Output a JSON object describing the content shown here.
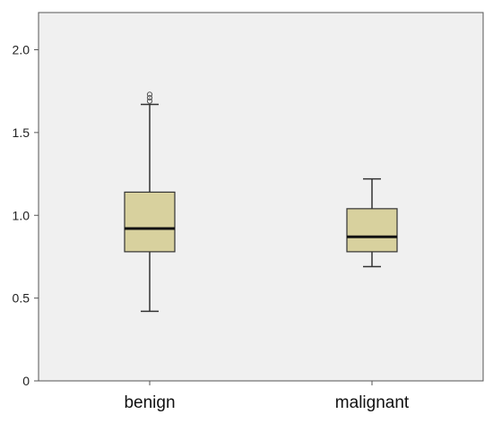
{
  "chart_data": {
    "type": "boxplot",
    "title": "",
    "xlabel": "",
    "ylabel": "",
    "categories": [
      "benign",
      "malignant"
    ],
    "ylim": [
      0,
      2.0
    ],
    "yticks": [
      "0",
      "0.5",
      "1.0",
      "1.5",
      "2.0"
    ],
    "ytick_values": [
      0,
      0.5,
      1.0,
      1.5,
      2.0
    ],
    "boxes": [
      {
        "category": "benign",
        "whisker_low": 0.42,
        "q1": 0.78,
        "median": 0.92,
        "q3": 1.14,
        "whisker_high": 1.67,
        "outliers": [
          1.69,
          1.71,
          1.73
        ]
      },
      {
        "category": "malignant",
        "whisker_low": 0.69,
        "q1": 0.78,
        "median": 0.87,
        "q3": 1.04,
        "whisker_high": 1.22,
        "outliers": []
      }
    ],
    "grid": false,
    "legend": "none",
    "colors": {
      "box_fill": "#d8d19e",
      "plot_bg": "#f0f0f0",
      "stroke": "#333333"
    }
  }
}
